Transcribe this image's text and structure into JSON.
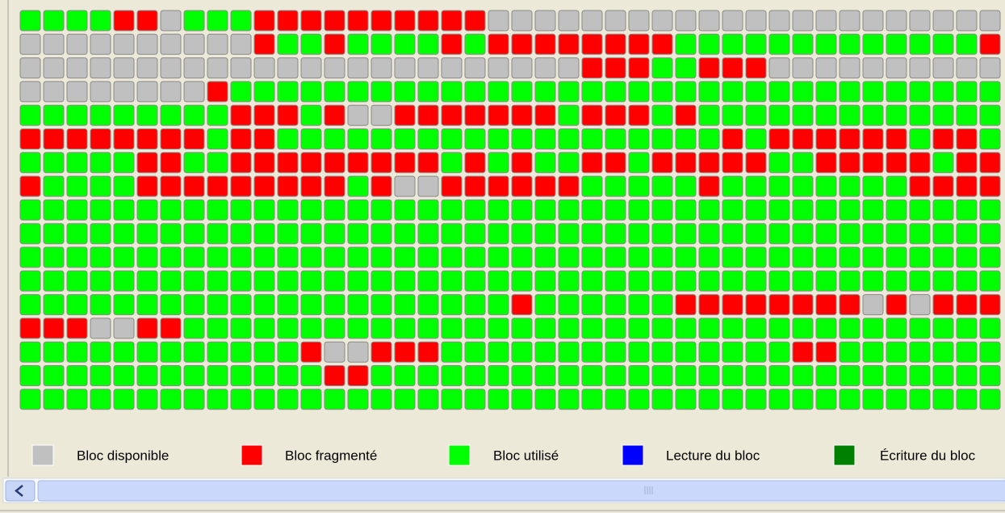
{
  "legend": {
    "items": [
      {
        "label": "Bloc disponible"
      },
      {
        "label": "Bloc fragmenté"
      },
      {
        "label": "Bloc utilisé"
      },
      {
        "label": "Lecture du bloc"
      },
      {
        "label": "Écriture du bloc"
      }
    ]
  }
}
